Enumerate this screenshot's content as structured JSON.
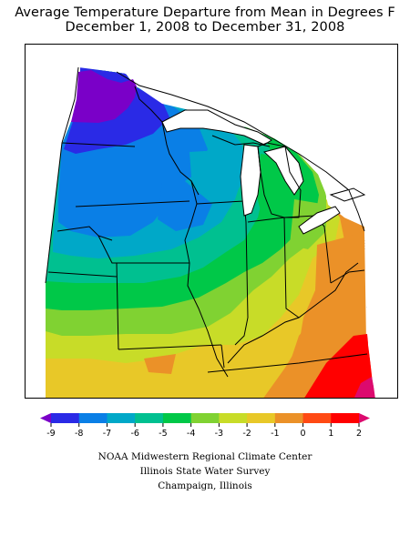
{
  "title": {
    "line1": "Average Temperature Departure from Mean in Degrees F",
    "line2": "December 1, 2008 to December 31, 2008"
  },
  "legend": {
    "ticks": [
      "-9",
      "-8",
      "-7",
      "-6",
      "-5",
      "-4",
      "-3",
      "-2",
      "-1",
      "0",
      "1",
      "2"
    ],
    "colors": [
      "#7a00c8",
      "#2a2ae6",
      "#0a7fe6",
      "#00a8c8",
      "#00c090",
      "#00c848",
      "#80d232",
      "#c8dc28",
      "#e8c828",
      "#eb9128",
      "#ff4a14",
      "#ff0000",
      "#dc0a6e"
    ]
  },
  "map": {
    "description_colors": {
      "purple": "#7a00c8",
      "blue": "#2a2ae6",
      "azure": "#0a7fe6",
      "teal": "#00a8c8",
      "seafoam": "#00c090",
      "green": "#00c848",
      "lime": "#80d232",
      "yellowgreen": "#c8dc28",
      "yellow": "#e8c828",
      "orange": "#eb9128",
      "red": "#ff4a14",
      "pink": "#dc0a6e"
    }
  },
  "credits": {
    "line1": "NOAA Midwestern Regional Climate Center",
    "line2": "Illinois State Water Survey",
    "line3": "Champaign, Illinois"
  }
}
